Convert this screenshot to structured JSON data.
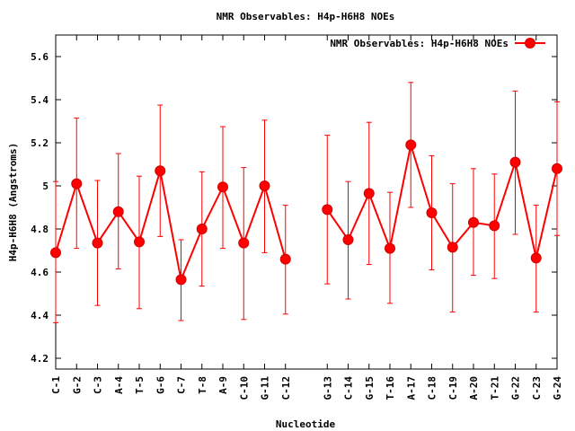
{
  "chart_data": {
    "type": "line",
    "title": "NMR Observables: H4p-H6H8 NOEs",
    "xlabel": "Nucleotide",
    "ylabel": "H4p-H6H8 (Angstroms)",
    "ylim": [
      4.15,
      5.7
    ],
    "yticks": [
      4.2,
      4.4,
      4.6,
      4.8,
      5,
      5.2,
      5.4,
      5.6
    ],
    "ytick_labels": [
      "4.2",
      "4.4",
      "4.6",
      "4.8",
      "5",
      "5.2",
      "5.4",
      "5.6"
    ],
    "xlim": [
      1,
      25
    ],
    "categories": [
      "C-1",
      "G-2",
      "C-3",
      "A-4",
      "T-5",
      "G-6",
      "C-7",
      "T-8",
      "A-9",
      "C-10",
      "G-11",
      "C-12",
      "G-13",
      "C-14",
      "G-15",
      "T-16",
      "A-17",
      "C-18",
      "C-19",
      "A-20",
      "T-21",
      "G-22",
      "C-23",
      "G-24"
    ],
    "x": [
      1,
      2,
      3,
      4,
      5,
      6,
      7,
      8,
      9,
      10,
      11,
      12,
      14,
      15,
      16,
      17,
      18,
      19,
      20,
      21,
      22,
      23,
      24,
      25
    ],
    "grid": false,
    "legend": "top-right",
    "series": [
      {
        "name": "NMR Observables: H4p-H6H8 NOEs",
        "color": "#ff0000",
        "segments": [
          [
            0,
            11
          ],
          [
            12,
            23
          ]
        ],
        "values": [
          4.69,
          5.01,
          4.735,
          4.88,
          4.74,
          5.07,
          4.565,
          4.8,
          4.995,
          4.735,
          5.0,
          4.66,
          4.89,
          4.75,
          4.965,
          4.71,
          5.19,
          4.875,
          4.715,
          4.83,
          4.815,
          5.11,
          4.665,
          5.08
        ],
        "error_low": [
          4.365,
          4.71,
          4.445,
          4.615,
          4.43,
          4.765,
          4.375,
          4.535,
          4.71,
          4.38,
          4.69,
          4.405,
          4.545,
          4.475,
          4.635,
          4.455,
          4.9,
          4.61,
          4.415,
          4.585,
          4.57,
          4.775,
          4.415,
          4.77
        ],
        "error_high": [
          5.02,
          5.315,
          5.025,
          5.15,
          5.045,
          5.375,
          4.75,
          5.065,
          5.275,
          5.085,
          5.305,
          4.91,
          5.235,
          5.02,
          5.295,
          4.97,
          5.48,
          5.14,
          5.01,
          5.08,
          5.055,
          5.44,
          4.91,
          5.39
        ]
      }
    ]
  }
}
